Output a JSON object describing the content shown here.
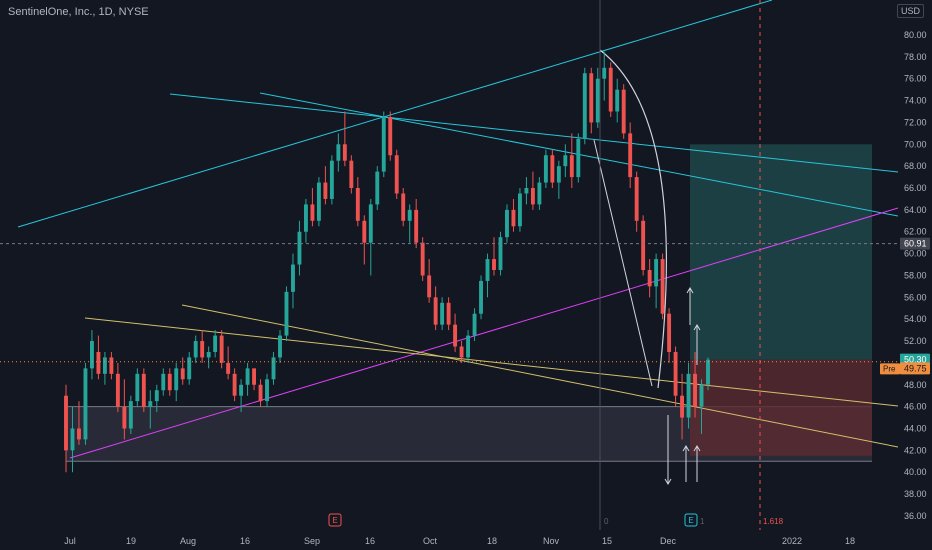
{
  "header": {
    "symbol_title": "SentinelOne, Inc., 1D, NYSE",
    "currency_label": "USD"
  },
  "colors": {
    "background": "#131722",
    "bull": "#26a69a",
    "bear": "#ef5350",
    "trend_cyan": "#26c6da",
    "trend_yellow": "#d4c06a",
    "trend_magenta": "#e040fb",
    "zone_gray": "#3a3d48",
    "target_teal": "#1f4d4d",
    "stop_red": "#5b2a31"
  },
  "chart_data": {
    "type": "candlestick",
    "title": "SentinelOne, Inc., 1D, NYSE",
    "currency": "USD",
    "ylim": [
      35,
      84
    ],
    "y_ticks": [
      "36.00",
      "38.00",
      "40.00",
      "42.00",
      "44.00",
      "46.00",
      "48.00",
      "50.00",
      "52.00",
      "54.00",
      "56.00",
      "58.00",
      "60.00",
      "62.00",
      "64.00",
      "66.00",
      "68.00",
      "70.00",
      "72.00",
      "74.00",
      "76.00",
      "78.00",
      "80.00"
    ],
    "x_tick_labels": [
      "Jul",
      "19",
      "Aug",
      "16",
      "Sep",
      "16",
      "Oct",
      "18",
      "Nov",
      "15",
      "Dec",
      "2022",
      "18"
    ],
    "grid": false,
    "candles_ohlc": [
      [
        47.0,
        48.0,
        40.0,
        42.0
      ],
      [
        42.0,
        46.0,
        40.0,
        44.0
      ],
      [
        44.0,
        46.5,
        42.5,
        43.0
      ],
      [
        43.0,
        50.0,
        42.5,
        49.5
      ],
      [
        49.5,
        53.0,
        48.5,
        52.0
      ],
      [
        51.0,
        52.5,
        48.5,
        49.0
      ],
      [
        49.0,
        51.0,
        48.0,
        50.5
      ],
      [
        50.5,
        51.0,
        48.5,
        49.0
      ],
      [
        49.0,
        50.0,
        45.5,
        46.0
      ],
      [
        46.0,
        48.5,
        43.0,
        44.0
      ],
      [
        44.0,
        47.0,
        43.5,
        46.5
      ],
      [
        46.5,
        49.5,
        46.0,
        49.0
      ],
      [
        49.0,
        49.5,
        45.5,
        46.0
      ],
      [
        46.0,
        47.5,
        44.0,
        46.5
      ],
      [
        46.5,
        48.0,
        45.5,
        47.5
      ],
      [
        47.5,
        49.5,
        47.0,
        49.0
      ],
      [
        49.0,
        49.5,
        47.0,
        47.5
      ],
      [
        47.5,
        50.0,
        46.5,
        49.5
      ],
      [
        49.5,
        50.5,
        48.0,
        48.5
      ],
      [
        48.5,
        51.0,
        48.0,
        50.5
      ],
      [
        50.5,
        52.5,
        50.0,
        52.0
      ],
      [
        52.0,
        53.0,
        50.0,
        50.5
      ],
      [
        50.5,
        51.5,
        49.5,
        51.0
      ],
      [
        51.0,
        53.0,
        50.5,
        52.5
      ],
      [
        52.5,
        53.0,
        49.5,
        50.0
      ],
      [
        50.0,
        51.5,
        48.5,
        49.0
      ],
      [
        49.0,
        49.5,
        46.5,
        47.0
      ],
      [
        47.0,
        48.5,
        45.5,
        48.0
      ],
      [
        48.0,
        50.0,
        47.0,
        49.5
      ],
      [
        49.5,
        49.5,
        47.5,
        48.0
      ],
      [
        48.0,
        48.5,
        46.0,
        46.5
      ],
      [
        46.5,
        49.0,
        46.0,
        48.5
      ],
      [
        48.5,
        51.0,
        48.0,
        50.5
      ],
      [
        50.5,
        53.0,
        50.0,
        52.5
      ],
      [
        52.5,
        57.0,
        52.0,
        56.5
      ],
      [
        56.5,
        60.0,
        55.0,
        59.0
      ],
      [
        59.0,
        63.0,
        58.0,
        62.0
      ],
      [
        62.0,
        65.0,
        61.0,
        64.5
      ],
      [
        64.5,
        66.0,
        62.5,
        63.0
      ],
      [
        63.0,
        67.0,
        62.5,
        66.5
      ],
      [
        66.5,
        68.0,
        64.5,
        65.0
      ],
      [
        65.0,
        69.0,
        64.5,
        68.5
      ],
      [
        68.5,
        71.0,
        67.5,
        70.0
      ],
      [
        70.0,
        73.0,
        68.0,
        68.5
      ],
      [
        68.5,
        69.0,
        65.5,
        66.0
      ],
      [
        66.0,
        67.0,
        62.5,
        63.0
      ],
      [
        63.0,
        63.5,
        59.0,
        61.0
      ],
      [
        61.0,
        65.0,
        58.0,
        64.5
      ],
      [
        64.5,
        68.0,
        64.0,
        67.5
      ],
      [
        67.5,
        73.0,
        67.0,
        72.5
      ],
      [
        72.5,
        73.0,
        68.5,
        69.0
      ],
      [
        69.0,
        69.5,
        65.0,
        65.5
      ],
      [
        65.5,
        66.0,
        62.5,
        63.0
      ],
      [
        63.0,
        64.5,
        61.0,
        64.0
      ],
      [
        64.0,
        65.0,
        60.5,
        61.0
      ],
      [
        61.0,
        61.5,
        57.5,
        58.0
      ],
      [
        58.0,
        59.5,
        55.5,
        56.0
      ],
      [
        56.0,
        57.0,
        53.0,
        53.5
      ],
      [
        53.5,
        56.0,
        53.0,
        55.5
      ],
      [
        55.5,
        56.0,
        53.0,
        53.5
      ],
      [
        53.5,
        54.5,
        51.0,
        51.5
      ],
      [
        51.5,
        52.0,
        50.0,
        50.5
      ],
      [
        50.5,
        53.0,
        50.0,
        52.5
      ],
      [
        52.5,
        55.0,
        52.0,
        54.5
      ],
      [
        54.5,
        58.0,
        54.0,
        57.5
      ],
      [
        57.5,
        60.0,
        56.0,
        59.5
      ],
      [
        59.5,
        61.5,
        58.0,
        58.5
      ],
      [
        58.5,
        62.0,
        58.0,
        61.5
      ],
      [
        61.5,
        64.5,
        61.0,
        64.0
      ],
      [
        64.0,
        65.0,
        62.0,
        62.5
      ],
      [
        62.5,
        66.0,
        62.0,
        65.5
      ],
      [
        65.5,
        67.0,
        64.5,
        66.0
      ],
      [
        66.0,
        67.5,
        64.0,
        64.5
      ],
      [
        64.5,
        67.0,
        64.0,
        66.5
      ],
      [
        66.5,
        69.5,
        66.0,
        69.0
      ],
      [
        69.0,
        69.5,
        66.0,
        66.5
      ],
      [
        66.5,
        68.5,
        65.0,
        68.0
      ],
      [
        68.0,
        70.0,
        67.0,
        69.0
      ],
      [
        69.0,
        71.0,
        66.0,
        67.0
      ],
      [
        67.0,
        71.0,
        66.5,
        70.5
      ],
      [
        70.5,
        77.0,
        70.0,
        76.5
      ],
      [
        76.5,
        77.0,
        71.0,
        72.0
      ],
      [
        72.0,
        77.0,
        71.5,
        76.0
      ],
      [
        76.0,
        78.5,
        74.0,
        77.0
      ],
      [
        77.0,
        77.5,
        72.5,
        73.0
      ],
      [
        73.0,
        76.0,
        72.0,
        75.0
      ],
      [
        75.0,
        75.5,
        70.5,
        71.0
      ],
      [
        71.0,
        72.0,
        66.0,
        67.0
      ],
      [
        67.0,
        67.5,
        62.0,
        63.0
      ],
      [
        63.0,
        63.5,
        58.0,
        58.5
      ],
      [
        58.5,
        59.5,
        56.0,
        57.0
      ],
      [
        57.0,
        60.0,
        55.0,
        59.5
      ],
      [
        59.5,
        60.0,
        54.0,
        54.5
      ],
      [
        54.5,
        55.0,
        50.0,
        51.0
      ],
      [
        51.0,
        51.5,
        46.0,
        47.0
      ],
      [
        47.0,
        49.0,
        43.0,
        45.0
      ],
      [
        45.0,
        50.0,
        44.0,
        49.0
      ],
      [
        49.0,
        51.0,
        45.0,
        46.0
      ],
      [
        46.0,
        48.5,
        43.5,
        48.0
      ],
      [
        48.0,
        50.5,
        47.5,
        50.3
      ]
    ],
    "trendlines": [
      "ascending channel top (cyan)",
      "descending resistance (cyan)",
      "descending resistance (cyan)",
      "rising support (magenta)",
      "descending trendline (yellow)",
      "descending trendline (yellow)"
    ],
    "zones": [
      {
        "kind": "support",
        "from": 41.0,
        "to": 46.0
      },
      {
        "kind": "target",
        "from": 50.3,
        "to": 70.0
      },
      {
        "kind": "stop",
        "from": 41.5,
        "to": 50.3
      }
    ],
    "horizontal_line": 60.91,
    "annotations": {
      "fib_label": "1.618",
      "earnings_markers": [
        "E",
        "E"
      ],
      "count_left": "0",
      "count_right": "1"
    },
    "price_labels": {
      "last": "50.30",
      "pre_tag": "Pre",
      "pre": "49.75",
      "level": "60.91"
    }
  }
}
